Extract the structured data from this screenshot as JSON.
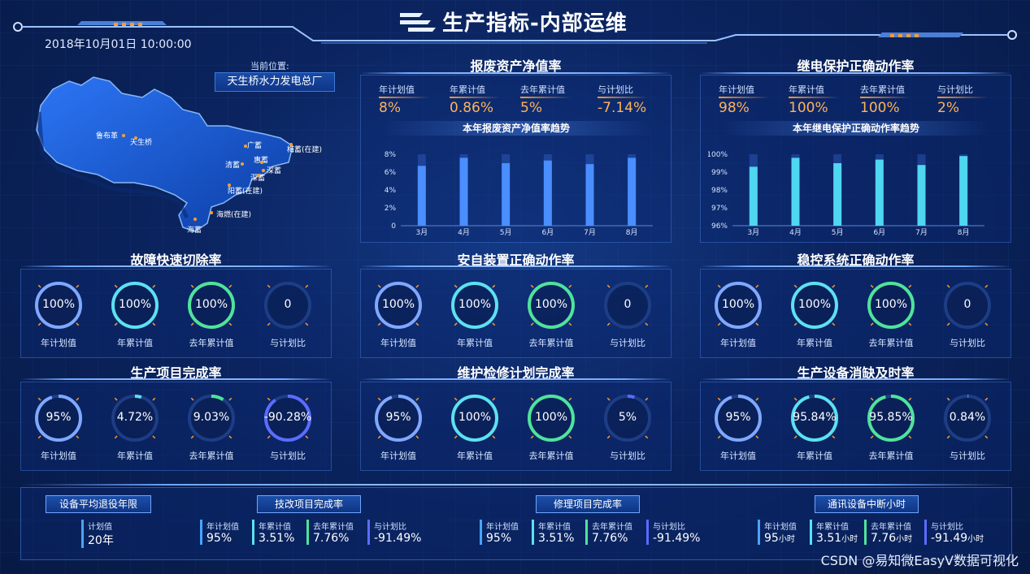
{
  "header": {
    "title": "生产指标-内部运维",
    "datetime": "2018年10月01日  10:00:00"
  },
  "location": {
    "label": "当前位置:",
    "value": "天生桥水力发电总厂"
  },
  "map": {
    "labels": [
      "鲁布革",
      "天生桥",
      "广蓄",
      "梅蓄(在建)",
      "清蓄",
      "惠蓄",
      "深蓄",
      "深蓄",
      "阳蓄(在建)",
      "海燃(在建)",
      "海蓄"
    ]
  },
  "panels": {
    "asset": {
      "title": "报废资产净值率",
      "stats": [
        {
          "label": "年计划值",
          "value": "8%"
        },
        {
          "label": "年累计值",
          "value": "0.86%"
        },
        {
          "label": "去年累计值",
          "value": "5%"
        },
        {
          "label": "与计划比",
          "value": "-7.14%"
        }
      ],
      "chart_title": "本年报废资产净值率趋势"
    },
    "relay": {
      "title": "继电保护正确动作率",
      "stats": [
        {
          "label": "年计划值",
          "value": "98%"
        },
        {
          "label": "年累计值",
          "value": "100%"
        },
        {
          "label": "去年累计值",
          "value": "100%"
        },
        {
          "label": "与计划比",
          "value": "2%"
        }
      ],
      "chart_title": "本年继电保护正确动作率趋势"
    },
    "fault": {
      "title": "故障快速切除率"
    },
    "safety": {
      "title": "安自装置正确动作率"
    },
    "stability": {
      "title": "稳控系统正确动作率"
    },
    "project": {
      "title": "生产项目完成率"
    },
    "maintenance": {
      "title": "维护检修计划完成率"
    },
    "defect": {
      "title": "生产设备消缺及时率"
    }
  },
  "gauge_labels": [
    "年计划值",
    "年累计值",
    "去年累计值",
    "与计划比"
  ],
  "gauges": {
    "fault": [
      {
        "value": "100%",
        "pct": 1.0,
        "color": "#7fa8ff"
      },
      {
        "value": "100%",
        "pct": 1.0,
        "color": "#5ce1f0"
      },
      {
        "value": "100%",
        "pct": 1.0,
        "color": "#4fe39b"
      },
      {
        "value": "0",
        "pct": 0,
        "color": "#7fa8ff"
      }
    ],
    "safety": [
      {
        "value": "100%",
        "pct": 1.0,
        "color": "#7fa8ff"
      },
      {
        "value": "100%",
        "pct": 1.0,
        "color": "#5ce1f0"
      },
      {
        "value": "100%",
        "pct": 1.0,
        "color": "#4fe39b"
      },
      {
        "value": "0",
        "pct": 0,
        "color": "#7fa8ff"
      }
    ],
    "stability": [
      {
        "value": "100%",
        "pct": 1.0,
        "color": "#7fa8ff"
      },
      {
        "value": "100%",
        "pct": 1.0,
        "color": "#5ce1f0"
      },
      {
        "value": "100%",
        "pct": 1.0,
        "color": "#4fe39b"
      },
      {
        "value": "0",
        "pct": 0,
        "color": "#7fa8ff"
      }
    ],
    "project": [
      {
        "value": "95%",
        "pct": 0.95,
        "color": "#7fa8ff"
      },
      {
        "value": "4.72%",
        "pct": 0.0472,
        "color": "#5ce1f0"
      },
      {
        "value": "9.03%",
        "pct": 0.0903,
        "color": "#4fe39b"
      },
      {
        "value": "-90.28%",
        "pct": 0.9028,
        "color": "#5b6cff"
      }
    ],
    "maintenance": [
      {
        "value": "95%",
        "pct": 0.95,
        "color": "#7fa8ff"
      },
      {
        "value": "100%",
        "pct": 1.0,
        "color": "#5ce1f0"
      },
      {
        "value": "100%",
        "pct": 1.0,
        "color": "#4fe39b"
      },
      {
        "value": "5%",
        "pct": 0.05,
        "color": "#5b6cff"
      }
    ],
    "defect": [
      {
        "value": "95%",
        "pct": 0.95,
        "color": "#7fa8ff"
      },
      {
        "value": "95.84%",
        "pct": 0.9584,
        "color": "#5ce1f0"
      },
      {
        "value": "95.85%",
        "pct": 0.9585,
        "color": "#4fe39b"
      },
      {
        "value": "0.84%",
        "pct": 0.0084,
        "color": "#5b6cff"
      }
    ]
  },
  "bottom": {
    "equip": {
      "tag": "设备平均退役年限",
      "label": "计划值",
      "value": "20年"
    },
    "tech": {
      "tag": "技改项目完成率",
      "stats": [
        {
          "label": "年计划值",
          "value": "95%"
        },
        {
          "label": "年累计值",
          "value": "3.51%"
        },
        {
          "label": "去年累计值",
          "value": "7.76%"
        },
        {
          "label": "与计划比",
          "value": "-91.49%"
        }
      ]
    },
    "repair": {
      "tag": "修理项目完成率",
      "stats": [
        {
          "label": "年计划值",
          "value": "95%"
        },
        {
          "label": "年累计值",
          "value": "3.51%"
        },
        {
          "label": "去年累计值",
          "value": "7.76%"
        },
        {
          "label": "与计划比",
          "value": "-91.49%"
        }
      ]
    },
    "comm": {
      "tag": "通讯设备中断小时",
      "unit": "小时",
      "stats": [
        {
          "label": "年计划值",
          "value": "95"
        },
        {
          "label": "年累计值",
          "value": "3.51"
        },
        {
          "label": "去年累计值",
          "value": "7.76"
        },
        {
          "label": "与计划比",
          "value": "-91.49"
        }
      ]
    }
  },
  "chart_data": [
    {
      "type": "bar",
      "categories": [
        "3月",
        "4月",
        "5月",
        "6月",
        "7月",
        "8月"
      ],
      "values": [
        6.7,
        7.6,
        7.0,
        7.3,
        6.9,
        7.6
      ],
      "ylim": [
        0,
        8
      ],
      "ticks": [
        "0",
        "2%",
        "4%",
        "6%",
        "8%"
      ],
      "color": "#4a8eff"
    },
    {
      "type": "bar",
      "categories": [
        "3月",
        "4月",
        "5月",
        "6月",
        "7月",
        "8月"
      ],
      "values": [
        99.3,
        99.8,
        99.5,
        99.7,
        99.4,
        99.9
      ],
      "ylim": [
        96,
        100
      ],
      "ticks": [
        "96%",
        "97%",
        "98%",
        "99%",
        "100%"
      ],
      "color": "#4fd6f0"
    }
  ],
  "watermark": "CSDN @易知微EasyV数据可视化"
}
